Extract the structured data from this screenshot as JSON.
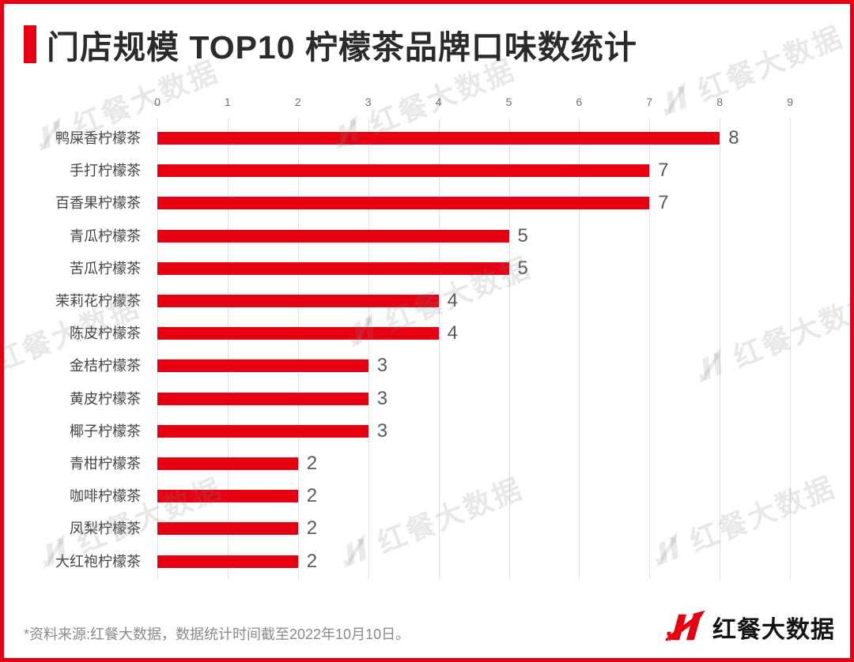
{
  "page": {
    "border_color": "#e60012",
    "background": "#ffffff"
  },
  "header": {
    "title": "门店规模 TOP10 柠檬茶品牌口味数统计",
    "marker_color": "#e60012"
  },
  "chart_data": {
    "type": "bar",
    "orientation": "horizontal",
    "title": "门店规模 TOP10 柠檬茶品牌口味数统计",
    "categories": [
      "鸭屎香柠檬茶",
      "手打柠檬茶",
      "百香果柠檬茶",
      "青瓜柠檬茶",
      "苦瓜柠檬茶",
      "茉莉花柠檬茶",
      "陈皮柠檬茶",
      "金桔柠檬茶",
      "黄皮柠檬茶",
      "椰子柠檬茶",
      "青柑柠檬茶",
      "咖啡柠檬茶",
      "凤梨柠檬茶",
      "大红袍柠檬茶"
    ],
    "values": [
      8,
      7,
      7,
      5,
      5,
      4,
      4,
      3,
      3,
      3,
      2,
      2,
      2,
      2
    ],
    "xlabel": "",
    "ylabel": "",
    "xlim": [
      0,
      9
    ],
    "x_ticks": [
      0,
      1,
      2,
      3,
      4,
      5,
      6,
      7,
      8,
      9
    ],
    "grid": true,
    "legend": false,
    "value_labels": true,
    "bar_color": "#e60012",
    "gridline_color": "#e0e0e0",
    "tick_color": "#707070",
    "category_label_color": "#454545",
    "value_label_color": "#5a5a5a"
  },
  "footer": {
    "source_note": "*资料来源:红餐大数据，数据统计时间截至2022年10月10日。",
    "logo_text": "红餐大数据"
  },
  "watermark": {
    "text": "红餐大数据"
  }
}
